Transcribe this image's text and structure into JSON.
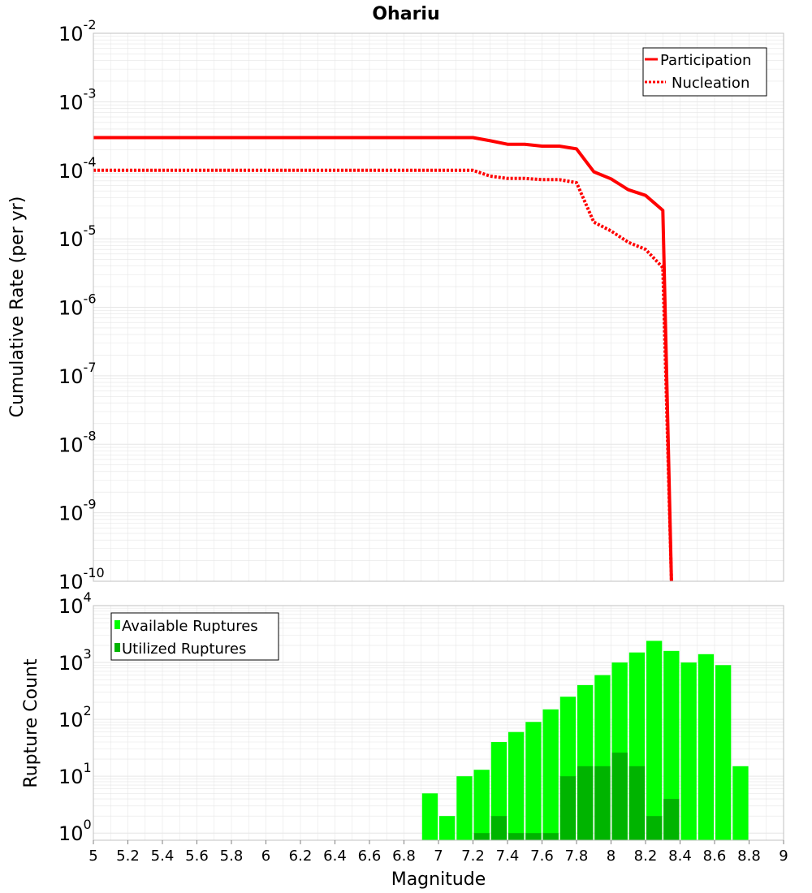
{
  "title": "Ohariu",
  "colors": {
    "participation": "#ff0000",
    "nucleation": "#ff0000",
    "available": "#00ff00",
    "utilized": "#00b400",
    "grid": "#e6e6e6",
    "frame": "#c0c0c0"
  },
  "chart_data": [
    {
      "type": "line",
      "title": "Ohariu",
      "xlabel": "Magnitude",
      "ylabel": "Cumulative Rate (per yr)",
      "yscale": "log",
      "ylim": [
        1e-10,
        0.01
      ],
      "xlim": [
        5,
        9
      ],
      "ytick_exponents": [
        "-10",
        "-9",
        "-8",
        "-7",
        "-6",
        "-5",
        "-4",
        "-3",
        "-2"
      ],
      "legend_position": "top-right",
      "series": [
        {
          "name": "Participation",
          "style": "solid",
          "x": [
            5.0,
            7.2,
            7.3,
            7.4,
            7.5,
            7.6,
            7.7,
            7.8,
            7.9,
            8.0,
            8.1,
            8.2,
            8.3,
            8.35
          ],
          "y": [
            0.0003,
            0.0003,
            0.00027,
            0.00024,
            0.00024,
            0.000225,
            0.000225,
            0.000205,
            9.5e-05,
            7.5e-05,
            5.2e-05,
            4.3e-05,
            2.6e-05,
            1e-10
          ]
        },
        {
          "name": "Nucleation",
          "style": "dotted",
          "x": [
            5.0,
            7.2,
            7.3,
            7.4,
            7.5,
            7.6,
            7.7,
            7.8,
            7.9,
            8.0,
            8.1,
            8.2,
            8.3,
            8.35
          ],
          "y": [
            0.0001,
            0.0001,
            8.2e-05,
            7.6e-05,
            7.6e-05,
            7.3e-05,
            7.3e-05,
            6.6e-05,
            1.75e-05,
            1.3e-05,
            8.9e-06,
            7e-06,
            3.8e-06,
            1e-10
          ]
        }
      ]
    },
    {
      "type": "bar",
      "xlabel": "Magnitude",
      "ylabel": "Rupture Count",
      "yscale": "log",
      "ylim": [
        0.75,
        10000
      ],
      "xlim": [
        5,
        9
      ],
      "xticks": [
        "5",
        "5.2",
        "5.4",
        "5.6",
        "5.8",
        "6",
        "6.2",
        "6.4",
        "6.6",
        "6.8",
        "7",
        "7.2",
        "7.4",
        "7.6",
        "7.8",
        "8",
        "8.2",
        "8.4",
        "8.6",
        "8.8",
        "9"
      ],
      "ytick_exponents": [
        "0",
        "1",
        "2",
        "3",
        "4"
      ],
      "legend_position": "top-left",
      "bin_width": 0.1,
      "series": [
        {
          "name": "Available Ruptures",
          "x": [
            6.95,
            7.05,
            7.15,
            7.25,
            7.35,
            7.45,
            7.55,
            7.65,
            7.75,
            7.85,
            7.95,
            8.05,
            8.15,
            8.25,
            8.35,
            8.45,
            8.55,
            8.65,
            8.75
          ],
          "values": [
            5,
            2,
            10,
            13,
            40,
            60,
            90,
            150,
            250,
            400,
            600,
            1000,
            1500,
            2400,
            1600,
            1000,
            1400,
            900,
            15
          ]
        },
        {
          "name": "Utilized Ruptures",
          "x": [
            6.95,
            7.05,
            7.15,
            7.25,
            7.35,
            7.45,
            7.55,
            7.65,
            7.75,
            7.85,
            7.95,
            8.05,
            8.15,
            8.25,
            8.35,
            8.45,
            8.55,
            8.65,
            8.75
          ],
          "values": [
            0,
            0,
            0,
            1,
            2,
            1,
            1,
            1,
            10,
            15,
            15,
            26,
            15,
            2,
            4,
            0,
            0,
            0,
            0
          ]
        }
      ]
    }
  ]
}
